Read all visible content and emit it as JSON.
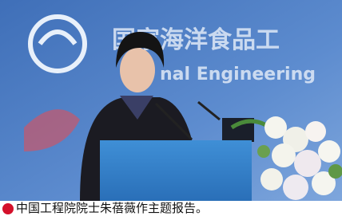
{
  "image": {
    "backdrop_text": [
      "国家海洋食品工",
      "nal Engineering"
    ]
  },
  "caption": {
    "text": "中国工程院院士朱蓓薇作主题报告。"
  }
}
